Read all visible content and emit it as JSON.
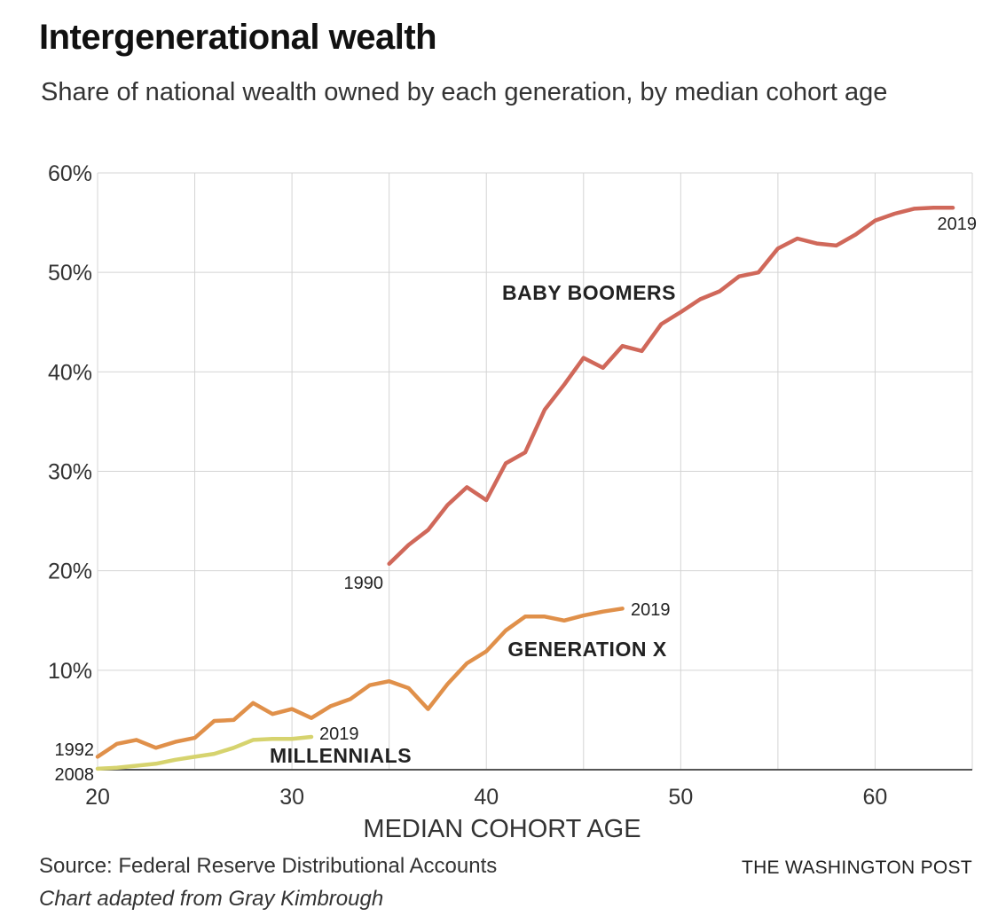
{
  "title": "Intergenerational wealth",
  "subtitle": "Share of national wealth owned by each generation, by median cohort age",
  "source": "Source: Federal Reserve Distributional Accounts",
  "credit": "Chart adapted from Gray Kimbrough",
  "brand": "THE WASHINGTON POST",
  "chart_data": {
    "type": "line",
    "title": "Intergenerational wealth",
    "xlabel": "MEDIAN COHORT AGE",
    "ylabel": "",
    "xlim": [
      20,
      65
    ],
    "ylim": [
      0,
      60
    ],
    "x_ticks": [
      20,
      30,
      40,
      50,
      60
    ],
    "y_ticks": [
      10,
      20,
      30,
      40,
      50,
      60
    ],
    "y_tick_labels": [
      "10%",
      "20%",
      "30%",
      "40%",
      "50%",
      "60%"
    ],
    "grid": true,
    "series": [
      {
        "name": "BABY BOOMERS",
        "color": "#d0685a",
        "start_label": "1990",
        "end_label": "2019",
        "x": [
          35,
          36,
          37,
          38,
          39,
          40,
          41,
          42,
          43,
          44,
          45,
          46,
          47,
          48,
          49,
          50,
          51,
          52,
          53,
          54,
          55,
          56,
          57,
          58,
          59,
          60,
          61,
          62,
          63,
          64
        ],
        "values": [
          20.7,
          22.6,
          24.1,
          26.6,
          28.4,
          27.1,
          30.8,
          31.9,
          36.2,
          38.7,
          41.4,
          40.4,
          42.6,
          42.1,
          44.8,
          46.0,
          47.3,
          48.1,
          49.6,
          50.0,
          52.4,
          53.4,
          52.9,
          52.7,
          53.8,
          55.2,
          55.9,
          56.4,
          56.5,
          56.5
        ]
      },
      {
        "name": "GENERATION X",
        "color": "#e0904a",
        "start_label": "1992",
        "end_label": "2019",
        "x": [
          20,
          21,
          22,
          23,
          24,
          25,
          26,
          27,
          28,
          29,
          30,
          31,
          32,
          33,
          34,
          35,
          36,
          37,
          38,
          39,
          40,
          41,
          42,
          43,
          44,
          45,
          46,
          47
        ],
        "values": [
          1.3,
          2.6,
          3.0,
          2.2,
          2.8,
          3.2,
          4.9,
          5.0,
          6.7,
          5.6,
          6.1,
          5.2,
          6.4,
          7.1,
          8.5,
          8.9,
          8.2,
          6.1,
          8.6,
          10.7,
          11.9,
          14.0,
          15.4,
          15.4,
          15.0,
          15.5,
          15.9,
          16.2
        ]
      },
      {
        "name": "MILLENNIALS",
        "color": "#d6d36e",
        "start_label": "2008",
        "end_label": "2019",
        "x": [
          20,
          21,
          22,
          23,
          24,
          25,
          26,
          27,
          28,
          29,
          30,
          31
        ],
        "values": [
          0.1,
          0.2,
          0.4,
          0.6,
          1.0,
          1.3,
          1.6,
          2.2,
          3.0,
          3.1,
          3.1,
          3.3
        ]
      }
    ]
  }
}
